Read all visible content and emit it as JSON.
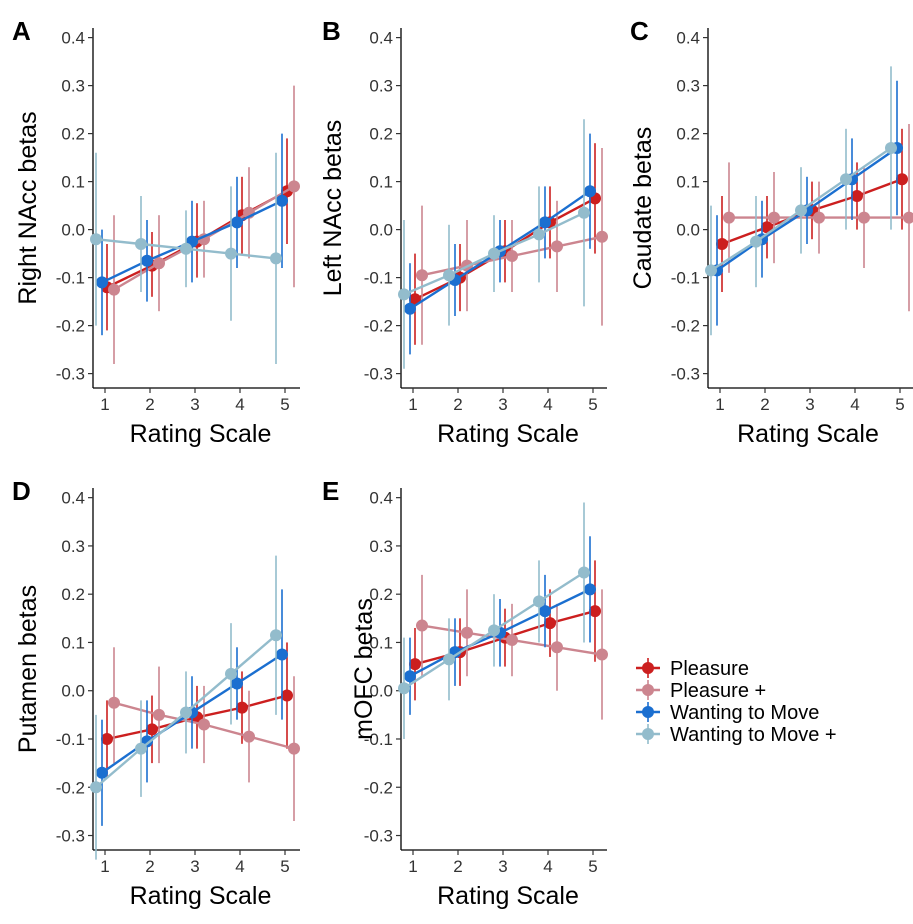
{
  "colors": {
    "Pleasure": "#cc1f1f",
    "Pleasure +": "#cc858f",
    "Wanting to Move": "#1b6fd0",
    "Wanting to Move +": "#93bccc"
  },
  "legend": {
    "items": [
      "Pleasure",
      "Pleasure +",
      "Wanting to Move",
      "Wanting to Move +"
    ]
  },
  "chart_data": [
    {
      "type": "line",
      "panel": "A",
      "xlabel": "Rating Scale",
      "ylabel": "Right NAcc betas",
      "x": [
        1,
        2,
        3,
        4,
        5
      ],
      "ylim": [
        -0.33,
        0.42
      ],
      "yticks": [
        -0.3,
        -0.2,
        -0.1,
        0.0,
        0.1,
        0.2,
        0.3,
        0.4
      ],
      "grid": false,
      "series": [
        {
          "name": "Pleasure",
          "values": [
            -0.12,
            -0.075,
            -0.025,
            0.03,
            0.08
          ],
          "lower": [
            -0.21,
            -0.14,
            -0.1,
            -0.05,
            -0.03
          ],
          "upper": [
            -0.03,
            -0.005,
            0.055,
            0.11,
            0.19
          ]
        },
        {
          "name": "Pleasure +",
          "values": [
            -0.125,
            -0.07,
            -0.02,
            0.035,
            0.09
          ],
          "lower": [
            -0.28,
            -0.17,
            -0.1,
            -0.06,
            -0.12
          ],
          "upper": [
            0.03,
            0.03,
            0.06,
            0.13,
            0.3
          ]
        },
        {
          "name": "Wanting to Move",
          "values": [
            -0.11,
            -0.065,
            -0.025,
            0.015,
            0.06
          ],
          "lower": [
            -0.22,
            -0.15,
            -0.11,
            -0.08,
            -0.08
          ],
          "upper": [
            0.0,
            0.02,
            0.06,
            0.11,
            0.2
          ]
        },
        {
          "name": "Wanting to Move +",
          "values": [
            -0.02,
            -0.03,
            -0.04,
            -0.05,
            -0.06
          ],
          "lower": [
            -0.2,
            -0.13,
            -0.12,
            -0.19,
            -0.28
          ],
          "upper": [
            0.16,
            0.07,
            0.04,
            0.09,
            0.16
          ]
        }
      ]
    },
    {
      "type": "line",
      "panel": "B",
      "xlabel": "Rating Scale",
      "ylabel": "Left NAcc betas",
      "x": [
        1,
        2,
        3,
        4,
        5
      ],
      "ylim": [
        -0.33,
        0.42
      ],
      "yticks": [
        -0.3,
        -0.2,
        -0.1,
        0.0,
        0.1,
        0.2,
        0.3,
        0.4
      ],
      "grid": false,
      "series": [
        {
          "name": "Pleasure",
          "values": [
            -0.145,
            -0.1,
            -0.045,
            0.015,
            0.065
          ],
          "lower": [
            -0.24,
            -0.17,
            -0.11,
            -0.06,
            -0.05
          ],
          "upper": [
            -0.05,
            -0.03,
            0.02,
            0.09,
            0.18
          ]
        },
        {
          "name": "Pleasure +",
          "values": [
            -0.095,
            -0.075,
            -0.055,
            -0.035,
            -0.015
          ],
          "lower": [
            -0.24,
            -0.17,
            -0.13,
            -0.13,
            -0.2
          ],
          "upper": [
            0.05,
            0.02,
            0.02,
            0.06,
            0.17
          ]
        },
        {
          "name": "Wanting to Move",
          "values": [
            -0.165,
            -0.105,
            -0.045,
            0.015,
            0.08
          ],
          "lower": [
            -0.26,
            -0.18,
            -0.11,
            -0.06,
            -0.04
          ],
          "upper": [
            -0.07,
            -0.03,
            0.02,
            0.09,
            0.2
          ]
        },
        {
          "name": "Wanting to Move +",
          "values": [
            -0.135,
            -0.095,
            -0.05,
            -0.01,
            0.035
          ],
          "lower": [
            -0.29,
            -0.2,
            -0.13,
            -0.11,
            -0.16
          ],
          "upper": [
            0.02,
            0.01,
            0.03,
            0.09,
            0.23
          ]
        }
      ]
    },
    {
      "type": "line",
      "panel": "C",
      "xlabel": "Rating Scale",
      "ylabel": "Caudate betas",
      "x": [
        1,
        2,
        3,
        4,
        5
      ],
      "ylim": [
        -0.33,
        0.42
      ],
      "yticks": [
        -0.3,
        -0.2,
        -0.1,
        0.0,
        0.1,
        0.2,
        0.3,
        0.4
      ],
      "grid": false,
      "series": [
        {
          "name": "Pleasure",
          "values": [
            -0.03,
            0.005,
            0.04,
            0.07,
            0.105
          ],
          "lower": [
            -0.13,
            -0.06,
            -0.02,
            0.0,
            0.0
          ],
          "upper": [
            0.07,
            0.07,
            0.1,
            0.14,
            0.21
          ]
        },
        {
          "name": "Pleasure +",
          "values": [
            0.025,
            0.025,
            0.025,
            0.025,
            0.025
          ],
          "lower": [
            -0.09,
            -0.07,
            -0.05,
            -0.08,
            -0.17
          ],
          "upper": [
            0.14,
            0.12,
            0.1,
            0.13,
            0.22
          ]
        },
        {
          "name": "Wanting to Move",
          "values": [
            -0.085,
            -0.02,
            0.04,
            0.105,
            0.17
          ],
          "lower": [
            -0.2,
            -0.1,
            -0.03,
            0.02,
            0.03
          ],
          "upper": [
            0.03,
            0.06,
            0.11,
            0.19,
            0.31
          ]
        },
        {
          "name": "Wanting to Move +",
          "values": [
            -0.085,
            -0.025,
            0.04,
            0.105,
            0.17
          ],
          "lower": [
            -0.22,
            -0.12,
            -0.05,
            0.0,
            0.0
          ],
          "upper": [
            0.05,
            0.07,
            0.13,
            0.21,
            0.34
          ]
        }
      ]
    },
    {
      "type": "line",
      "panel": "D",
      "xlabel": "Rating Scale",
      "ylabel": "Putamen betas",
      "x": [
        1,
        2,
        3,
        4,
        5
      ],
      "ylim": [
        -0.33,
        0.42
      ],
      "yticks": [
        -0.3,
        -0.2,
        -0.1,
        0.0,
        0.1,
        0.2,
        0.3,
        0.4
      ],
      "grid": false,
      "series": [
        {
          "name": "Pleasure",
          "values": [
            -0.1,
            -0.08,
            -0.055,
            -0.035,
            -0.01
          ],
          "lower": [
            -0.18,
            -0.15,
            -0.12,
            -0.11,
            -0.12
          ],
          "upper": [
            -0.02,
            -0.01,
            0.01,
            0.04,
            0.1
          ]
        },
        {
          "name": "Pleasure +",
          "values": [
            -0.025,
            -0.05,
            -0.07,
            -0.095,
            -0.12
          ],
          "lower": [
            -0.15,
            -0.15,
            -0.15,
            -0.19,
            -0.27
          ],
          "upper": [
            0.09,
            0.05,
            0.01,
            0.0,
            0.03
          ]
        },
        {
          "name": "Wanting to Move",
          "values": [
            -0.17,
            -0.105,
            -0.045,
            0.015,
            0.075
          ],
          "lower": [
            -0.28,
            -0.19,
            -0.12,
            -0.06,
            -0.06
          ],
          "upper": [
            -0.06,
            -0.02,
            0.03,
            0.09,
            0.21
          ]
        },
        {
          "name": "Wanting to Move +",
          "values": [
            -0.2,
            -0.12,
            -0.045,
            0.035,
            0.115
          ],
          "lower": [
            -0.35,
            -0.22,
            -0.13,
            -0.07,
            -0.05
          ],
          "upper": [
            -0.05,
            -0.02,
            0.04,
            0.14,
            0.28
          ]
        }
      ]
    },
    {
      "type": "line",
      "panel": "E",
      "xlabel": "Rating Scale",
      "ylabel": "mOFC betas",
      "x": [
        1,
        2,
        3,
        4,
        5
      ],
      "ylim": [
        -0.33,
        0.42
      ],
      "yticks": [
        -0.3,
        -0.2,
        -0.1,
        0.0,
        0.1,
        0.2,
        0.3,
        0.4
      ],
      "grid": false,
      "series": [
        {
          "name": "Pleasure",
          "values": [
            0.055,
            0.08,
            0.11,
            0.14,
            0.165
          ],
          "lower": [
            -0.02,
            0.01,
            0.05,
            0.07,
            0.06
          ],
          "upper": [
            0.13,
            0.15,
            0.17,
            0.21,
            0.27
          ]
        },
        {
          "name": "Pleasure +",
          "values": [
            0.135,
            0.12,
            0.105,
            0.09,
            0.075
          ],
          "lower": [
            0.03,
            0.03,
            0.03,
            0.0,
            -0.06
          ],
          "upper": [
            0.24,
            0.21,
            0.18,
            0.18,
            0.21
          ]
        },
        {
          "name": "Wanting to Move",
          "values": [
            0.03,
            0.08,
            0.12,
            0.165,
            0.21
          ],
          "lower": [
            -0.05,
            0.01,
            0.05,
            0.09,
            0.1
          ],
          "upper": [
            0.11,
            0.15,
            0.19,
            0.24,
            0.32
          ]
        },
        {
          "name": "Wanting to Move +",
          "values": [
            0.005,
            0.065,
            0.125,
            0.185,
            0.245
          ],
          "lower": [
            -0.1,
            -0.02,
            0.05,
            0.1,
            0.1
          ],
          "upper": [
            0.11,
            0.15,
            0.2,
            0.27,
            0.39
          ]
        }
      ]
    }
  ]
}
